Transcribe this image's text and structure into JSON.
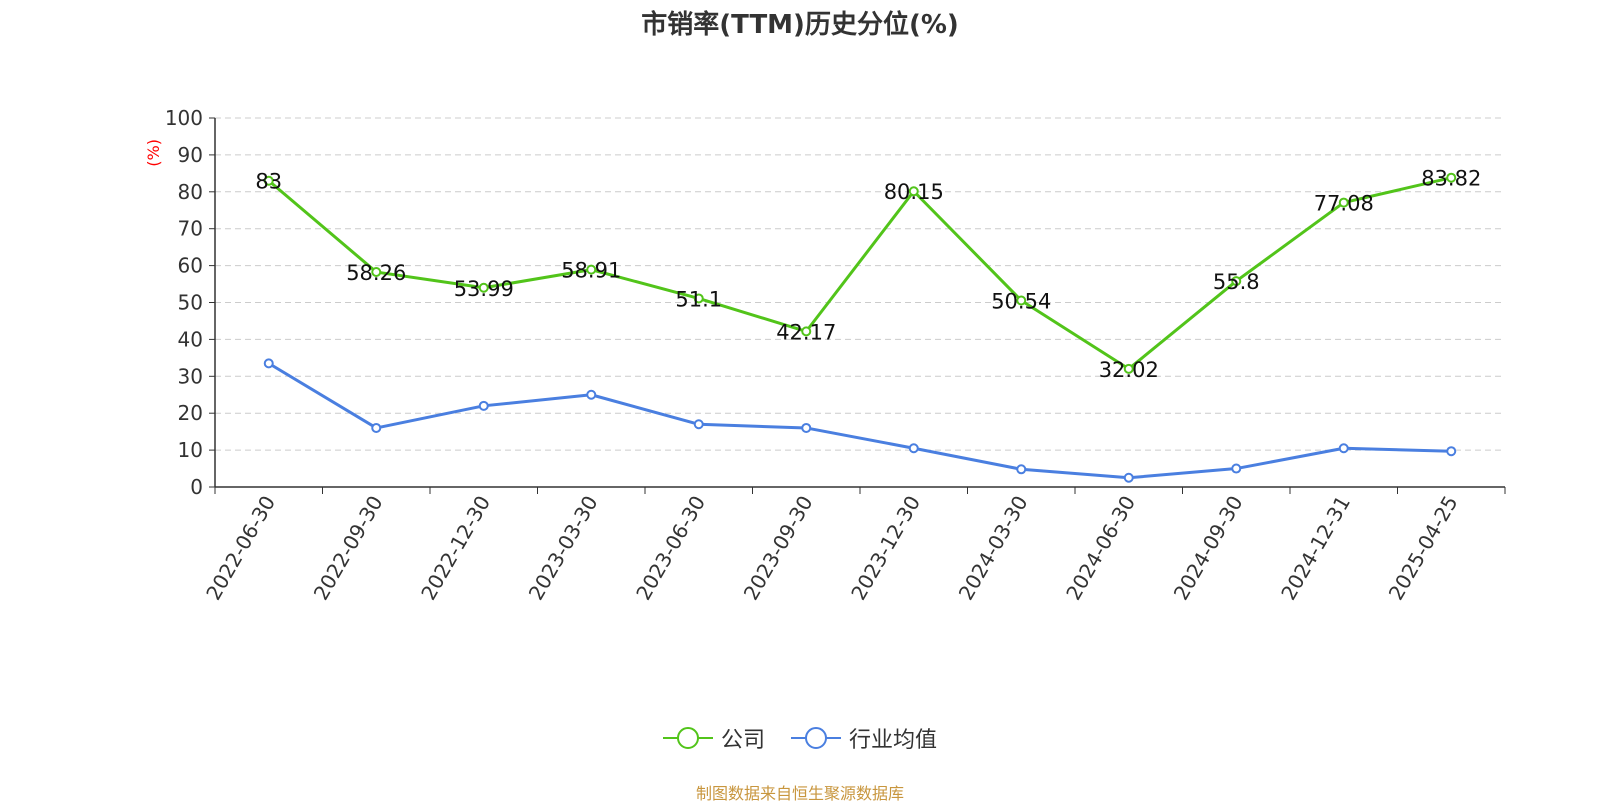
{
  "source": "制图数据来自恒生聚源数据库",
  "colors": {
    "company": "#52c41a",
    "industry": "#4a7fe0",
    "ylabel": "#ff0000",
    "source": "#c8963e"
  },
  "chart_data": {
    "type": "line",
    "title": "市销率(TTM)历史分位(%)",
    "ylabel": "(%)",
    "xlabel": "",
    "ylim": [
      0,
      100
    ],
    "yticks": [
      0,
      10,
      20,
      30,
      40,
      50,
      60,
      70,
      80,
      90,
      100
    ],
    "grid": true,
    "legend_position": "bottom",
    "categories": [
      "2022-06-30",
      "2022-09-30",
      "2022-12-30",
      "2023-03-30",
      "2023-06-30",
      "2023-09-30",
      "2023-12-30",
      "2024-03-30",
      "2024-06-30",
      "2024-09-30",
      "2024-12-31",
      "2025-04-25"
    ],
    "series": [
      {
        "name": "公司",
        "values": [
          83,
          58.26,
          53.99,
          58.91,
          51.1,
          42.17,
          80.15,
          50.54,
          32.02,
          55.8,
          77.08,
          83.82
        ],
        "labels": [
          "83",
          "58.26",
          "53.99",
          "58.91",
          "51.1",
          "42.17",
          "80.15",
          "50.54",
          "32.02",
          "55.8",
          "77.08",
          "83.82"
        ],
        "show_labels": true
      },
      {
        "name": "行业均值",
        "values": [
          33.5,
          16,
          22,
          25,
          17,
          16,
          10.5,
          4.8,
          2.5,
          5,
          10.5,
          9.7
        ],
        "show_labels": false
      }
    ]
  }
}
